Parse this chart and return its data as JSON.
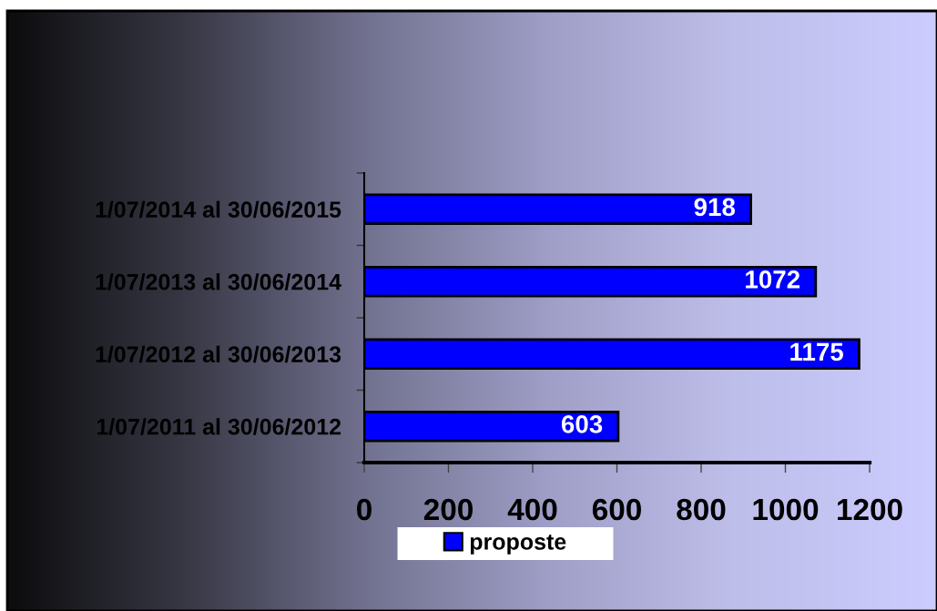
{
  "chart_data": {
    "type": "bar",
    "orientation": "horizontal",
    "categories": [
      "1/07/2014 al 30/06/2015",
      "1/07/2013 al 30/06/2014",
      "1/07/2012 al 30/06/2013",
      "1/07/2011 al 30/06/2012"
    ],
    "series": [
      {
        "name": "proposte",
        "color": "#0000ff",
        "values": [
          918,
          1072,
          1175,
          603
        ]
      }
    ],
    "xlim": [
      0,
      1200
    ],
    "xticks": [
      0,
      200,
      400,
      600,
      800,
      1000,
      1200
    ],
    "data_labels": true,
    "legend": "bottom",
    "grid": false
  }
}
